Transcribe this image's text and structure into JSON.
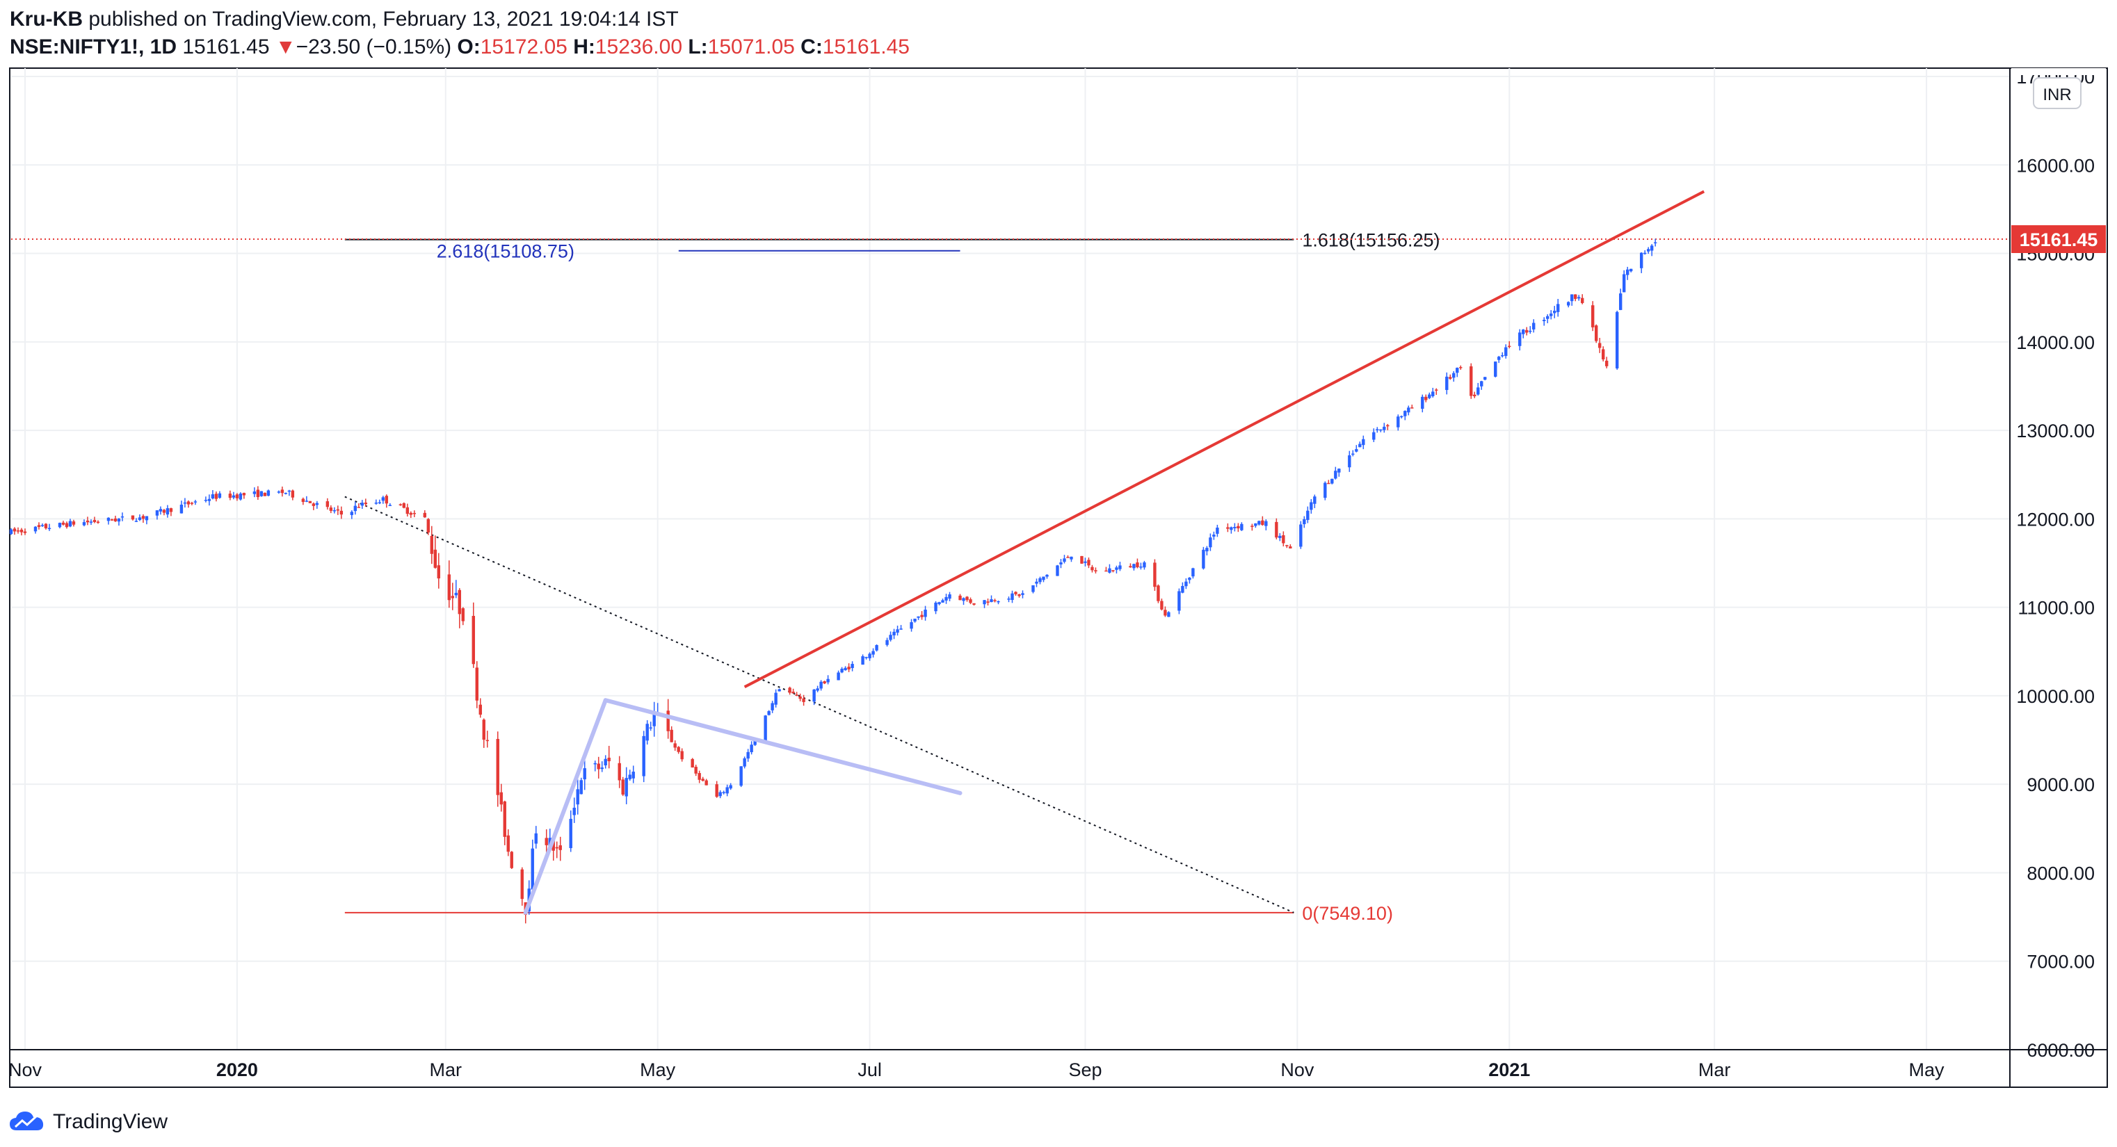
{
  "header": {
    "author": "Kru-KB",
    "published_text": "published on TradingView.com, February 13, 2021 19:04:14 IST",
    "symbol": "NSE:NIFTY1!, 1D",
    "last": "15161.45",
    "change_arrow": "▼",
    "change": "−23.50 (−0.15%)",
    "open_label": "O:",
    "open": "15172.05",
    "high_label": "H:",
    "high": "15236.00",
    "low_label": "L:",
    "low": "15071.05",
    "close_label": "C:",
    "close": "15161.45"
  },
  "footer": {
    "brand": "TradingView",
    "brand_icon": "tradingview-cloud-icon"
  },
  "colors": {
    "up": "#2962ff",
    "down": "#e53935",
    "trend": "#e53935",
    "wedge": "#b8bdf5",
    "fib_blue": "#2233bb",
    "grid": "#eef0f3",
    "axis": "#131722"
  },
  "chart_data": {
    "type": "candlestick",
    "currency_badge": "INR",
    "price_label": "15161.45",
    "ylim": [
      6000,
      17000
    ],
    "y_ticks": [
      {
        "v": 6000,
        "label": "6000.00"
      },
      {
        "v": 7000,
        "label": "7000.00"
      },
      {
        "v": 8000,
        "label": "8000.00"
      },
      {
        "v": 9000,
        "label": "9000.00"
      },
      {
        "v": 10000,
        "label": "10000.00"
      },
      {
        "v": 11000,
        "label": "11000.00"
      },
      {
        "v": 12000,
        "label": "12000.00"
      },
      {
        "v": 13000,
        "label": "13000.00"
      },
      {
        "v": 14000,
        "label": "14000.00"
      },
      {
        "v": 15000,
        "label": "15000.00"
      },
      {
        "v": 16000,
        "label": "16000.00"
      },
      {
        "v": 17000,
        "label": "17000.00"
      }
    ],
    "x_ticks": [
      {
        "date": "2019-11-01",
        "label": "Nov",
        "bold": false
      },
      {
        "date": "2020-01-01",
        "label": "2020",
        "bold": true
      },
      {
        "date": "2020-03-01",
        "label": "Mar",
        "bold": false
      },
      {
        "date": "2020-05-01",
        "label": "May",
        "bold": false
      },
      {
        "date": "2020-07-01",
        "label": "Jul",
        "bold": false
      },
      {
        "date": "2020-09-01",
        "label": "Sep",
        "bold": false
      },
      {
        "date": "2020-11-01",
        "label": "Nov",
        "bold": false
      },
      {
        "date": "2021-01-01",
        "label": "2021",
        "bold": true
      },
      {
        "date": "2021-03-01",
        "label": "Mar",
        "bold": false
      },
      {
        "date": "2021-05-01",
        "label": "May",
        "bold": false
      }
    ],
    "xlim": [
      "2019-10-28",
      "2021-05-25"
    ],
    "last_price": 15161.45,
    "price_path": [
      [
        "2019-10-28",
        11850
      ],
      [
        "2019-11-15",
        11950
      ],
      [
        "2019-12-05",
        12020
      ],
      [
        "2019-12-25",
        12250
      ],
      [
        "2020-01-15",
        12300
      ],
      [
        "2020-01-31",
        12050
      ],
      [
        "2020-02-05",
        12150
      ],
      [
        "2020-02-12",
        12220
      ],
      [
        "2020-02-24",
        12000
      ],
      [
        "2020-02-28",
        11350
      ],
      [
        "2020-03-06",
        10950
      ],
      [
        "2020-03-12",
        9600
      ],
      [
        "2020-03-16",
        8900
      ],
      [
        "2020-03-19",
        8250
      ],
      [
        "2020-03-24",
        7600
      ],
      [
        "2020-03-27",
        8500
      ],
      [
        "2020-04-03",
        8200
      ],
      [
        "2020-04-09",
        9100
      ],
      [
        "2020-04-17",
        9250
      ],
      [
        "2020-04-21",
        8950
      ],
      [
        "2020-04-30",
        9800
      ],
      [
        "2020-05-08",
        9300
      ],
      [
        "2020-05-18",
        8850
      ],
      [
        "2020-05-22",
        9000
      ],
      [
        "2020-05-29",
        9500
      ],
      [
        "2020-06-05",
        10100
      ],
      [
        "2020-06-12",
        9950
      ],
      [
        "2020-06-19",
        10200
      ],
      [
        "2020-06-26",
        10350
      ],
      [
        "2020-07-10",
        10750
      ],
      [
        "2020-07-24",
        11150
      ],
      [
        "2020-07-31",
        11050
      ],
      [
        "2020-08-14",
        11150
      ],
      [
        "2020-08-28",
        11600
      ],
      [
        "2020-09-04",
        11400
      ],
      [
        "2020-09-18",
        11500
      ],
      [
        "2020-09-24",
        10900
      ],
      [
        "2020-10-09",
        11900
      ],
      [
        "2020-10-23",
        11950
      ],
      [
        "2020-10-30",
        11650
      ],
      [
        "2020-11-06",
        12250
      ],
      [
        "2020-11-20",
        12900
      ],
      [
        "2020-12-04",
        13250
      ],
      [
        "2020-12-18",
        13700
      ],
      [
        "2020-12-21",
        13350
      ],
      [
        "2020-12-31",
        13950
      ],
      [
        "2021-01-15",
        14400
      ],
      [
        "2021-01-21",
        14550
      ],
      [
        "2021-01-29",
        13700
      ],
      [
        "2021-02-03",
        14750
      ],
      [
        "2021-02-12",
        15161
      ]
    ],
    "drawings": {
      "trendline": [
        [
          "2020-05-26",
          10100
        ],
        [
          "2021-02-26",
          15700
        ]
      ],
      "wedge_rise": [
        [
          "2020-03-24",
          7550
        ],
        [
          "2020-04-16",
          9950
        ]
      ],
      "wedge_fall": [
        [
          "2020-04-16",
          9950
        ],
        [
          "2020-07-27",
          8900
        ]
      ],
      "dotted_line": [
        [
          "2020-02-01",
          12250
        ],
        [
          "2020-10-31",
          7549.1
        ]
      ],
      "fib_0": {
        "value": 7549.1,
        "from": "2020-02-01",
        "to": "2020-10-31",
        "label": "0(7549.10)"
      },
      "fib_1618": {
        "value": 15156.25,
        "from": "2020-02-01",
        "to": "2020-10-31",
        "label": "1.618(15156.25)"
      },
      "fib_2618": {
        "value": 15108.75,
        "from": "2020-02-25",
        "to": "2020-07-27",
        "label": "2.618(15108.75)"
      }
    }
  }
}
